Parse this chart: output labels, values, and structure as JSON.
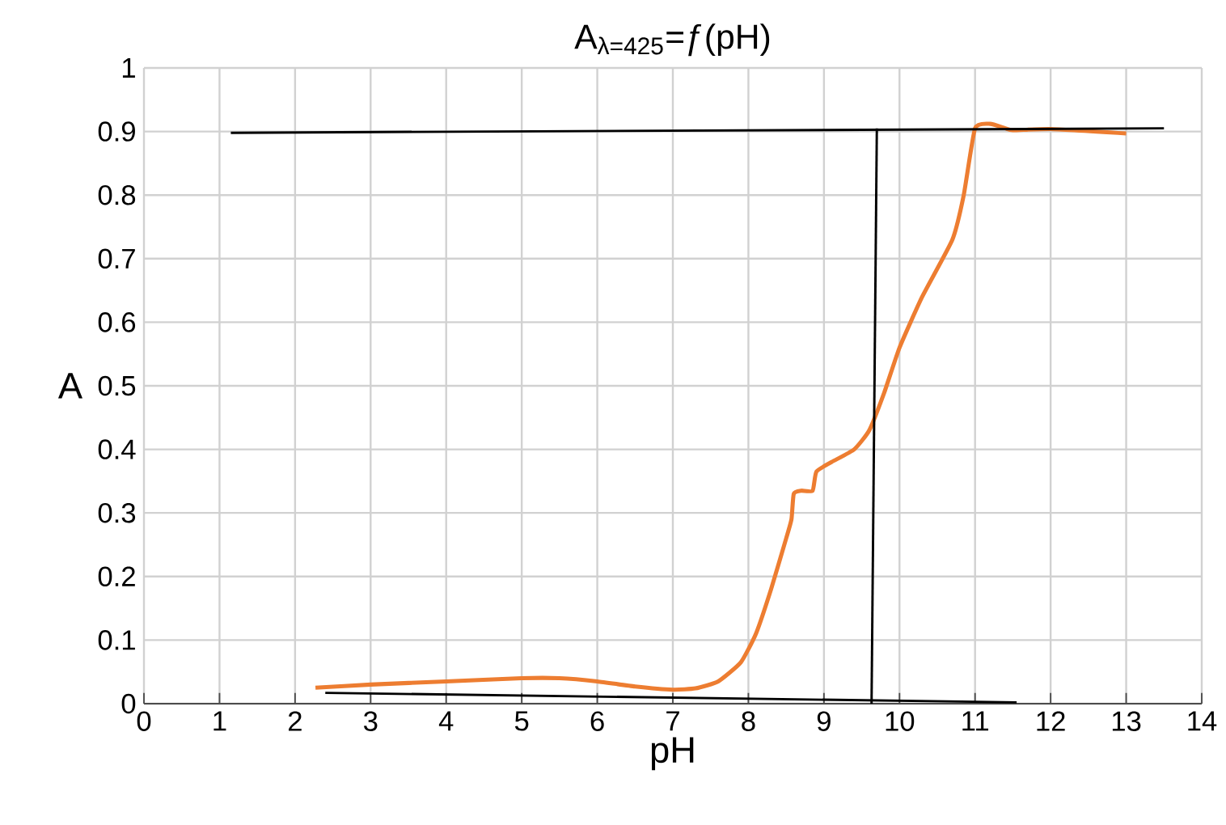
{
  "chart_data": {
    "type": "line",
    "title": "A$_{λ=425}$=ƒ(pH)",
    "xlabel": "pH",
    "ylabel": "A",
    "xlim": [
      0,
      14
    ],
    "xticks": [
      0,
      1,
      2,
      3,
      4,
      5,
      6,
      7,
      8,
      9,
      10,
      11,
      12,
      13,
      14
    ],
    "ylim": [
      0,
      1
    ],
    "yticks": [
      0,
      0.1,
      0.2,
      0.3,
      0.4,
      0.5,
      0.6,
      0.7,
      0.8,
      0.9,
      1
    ],
    "grid": true,
    "marker": "none",
    "line_style": "solid",
    "series": [
      {
        "color": "#ed7d31",
        "x": [
          2.27,
          3,
          4,
          5,
          5.5,
          6,
          6.5,
          7,
          7.3,
          7.6,
          7.9,
          8.1,
          8.3,
          8.5,
          8.57,
          8.6,
          8.7,
          8.85,
          8.9,
          9.1,
          9.4,
          9.6,
          9.8,
          10,
          10.3,
          10.7,
          10.85,
          11,
          11.2,
          11.4,
          11.5,
          12,
          13
        ],
        "values": [
          0.025,
          0.03,
          0.035,
          0.04,
          0.04,
          0.035,
          0.027,
          0.022,
          0.024,
          0.035,
          0.065,
          0.11,
          0.18,
          0.26,
          0.29,
          0.33,
          0.335,
          0.335,
          0.365,
          0.38,
          0.4,
          0.43,
          0.49,
          0.56,
          0.64,
          0.73,
          0.8,
          0.905,
          0.912,
          0.905,
          0.902,
          0.904,
          0.897
        ]
      },
      {
        "color": "#000000",
        "x": [
          1.15,
          13.5
        ],
        "values": [
          0.898,
          0.905
        ]
      },
      {
        "color": "#000000",
        "x": [
          9.63,
          9.7
        ],
        "values": [
          0.0,
          0.905
        ]
      },
      {
        "color": "#000000",
        "x": [
          2.4,
          11.55
        ],
        "values": [
          0.017,
          0.002
        ]
      }
    ]
  }
}
